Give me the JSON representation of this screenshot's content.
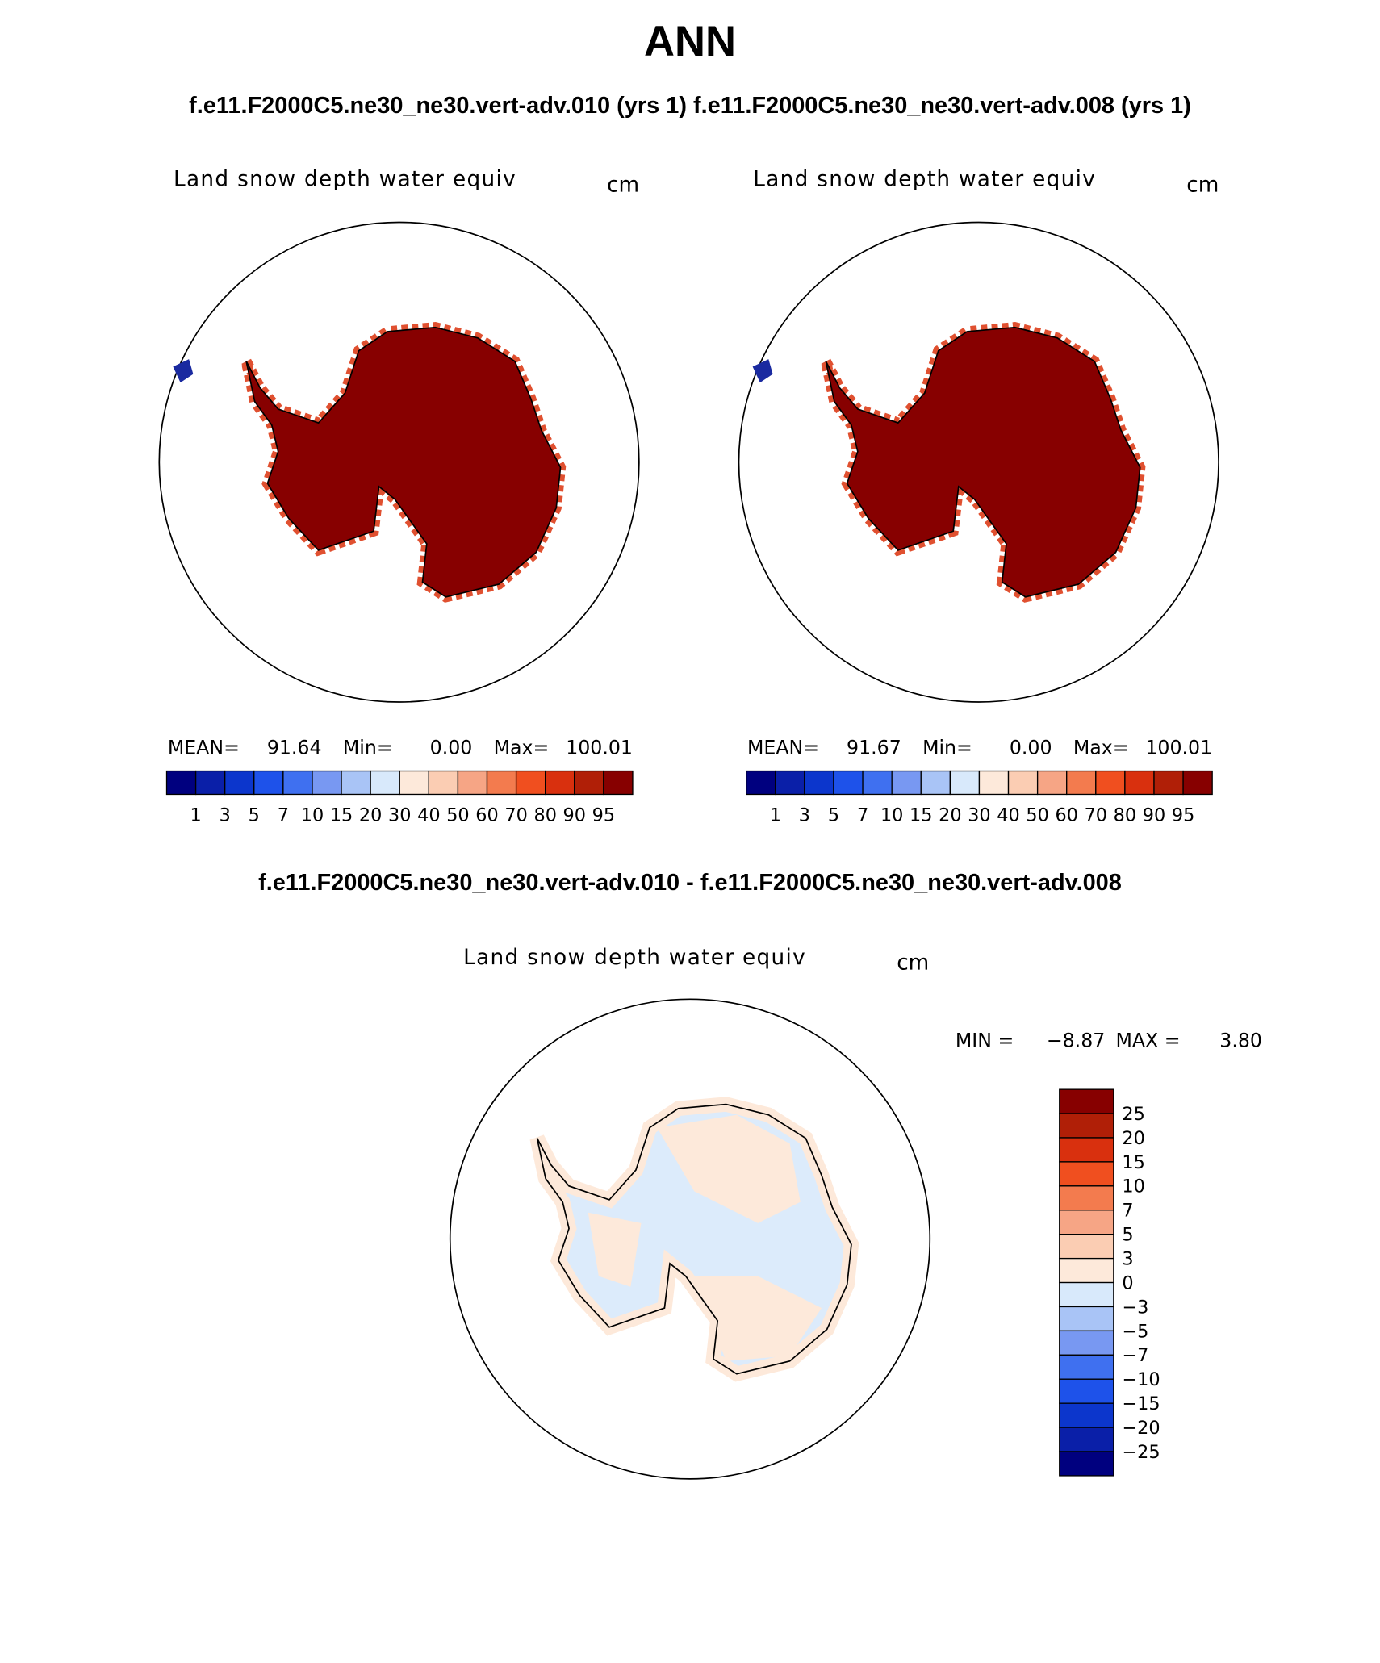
{
  "title": "ANN",
  "subtitle": "f.e11.F2000C5.ne30_ne30.vert-adv.010 (yrs 1) f.e11.F2000C5.ne30_ne30.vert-adv.008 (yrs 1)",
  "panels": [
    {
      "title": "Land snow depth water equiv",
      "units": "cm",
      "stats": {
        "mean_label": "MEAN=",
        "mean": "91.64",
        "min_label": "Min=",
        "min": "0.00",
        "max_label": "Max=",
        "max": "100.01"
      }
    },
    {
      "title": "Land snow depth water equiv",
      "units": "cm",
      "stats": {
        "mean_label": "MEAN=",
        "mean": "91.67",
        "min_label": "Min=",
        "min": "0.00",
        "max_label": "Max=",
        "max": "100.01"
      }
    }
  ],
  "colorbar": {
    "labels": [
      "1",
      "3",
      "5",
      "7",
      "10",
      "15",
      "20",
      "30",
      "40",
      "50",
      "60",
      "70",
      "80",
      "90",
      "95"
    ],
    "colors": [
      "#00007f",
      "#0a1fa8",
      "#0c36cc",
      "#1e52ea",
      "#3f70f0",
      "#7898f2",
      "#a9c4f6",
      "#d8e9fb",
      "#fde9da",
      "#fbcdb3",
      "#f6a585",
      "#f37b4e",
      "#f04f1f",
      "#d9300e",
      "#b01f07",
      "#870000"
    ]
  },
  "difference": {
    "title": "f.e11.F2000C5.ne30_ne30.vert-adv.010 - f.e11.F2000C5.ne30_ne30.vert-adv.008",
    "panel_title": "Land snow depth water equiv",
    "units": "cm",
    "stats": {
      "min_label": "MIN =",
      "min": "−8.87",
      "max_label": "MAX =",
      "max": "3.80"
    },
    "colorbar": {
      "labels": [
        "25",
        "20",
        "15",
        "10",
        "7",
        "5",
        "3",
        "0",
        "−3",
        "−5",
        "−7",
        "−10",
        "−15",
        "−20",
        "−25"
      ],
      "colors": [
        "#870000",
        "#b01f07",
        "#d9300e",
        "#f04f1f",
        "#f37b4e",
        "#f6a585",
        "#fbcdb3",
        "#fde9da",
        "#d8e9fb",
        "#a9c4f6",
        "#7898f2",
        "#3f70f0",
        "#1e52ea",
        "#0c36cc",
        "#0a1fa8",
        "#00007f"
      ]
    }
  }
}
